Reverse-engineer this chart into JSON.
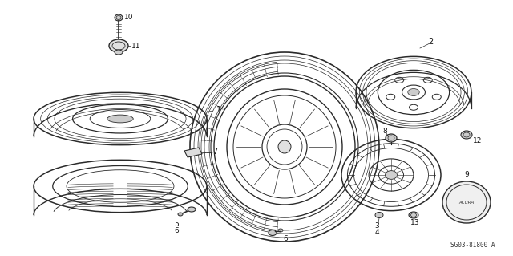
{
  "bg_color": "#ffffff",
  "line_color": "#2a2a2a",
  "diagram_code": "SG03-81800 A",
  "figsize": [
    6.4,
    3.19
  ],
  "dpi": 100
}
